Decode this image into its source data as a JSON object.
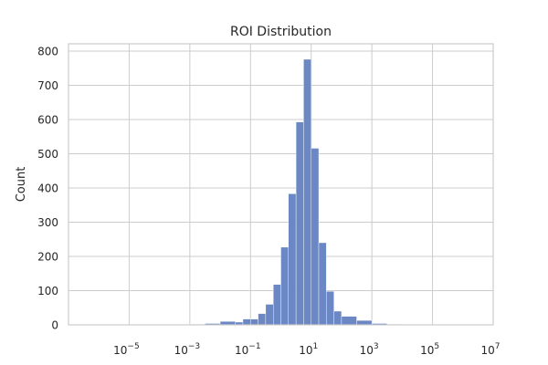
{
  "chart_data": {
    "type": "bar",
    "title": "ROI Distribution",
    "xlabel": "",
    "ylabel": "Count",
    "x_scale": "log",
    "xlim_exponents": [
      -7.0,
      7.0
    ],
    "ylim": [
      0,
      800
    ],
    "y_ticks": [
      0,
      100,
      200,
      300,
      400,
      500,
      600,
      700,
      800
    ],
    "x_ticks": [
      {
        "base": "10",
        "exp": "−5",
        "value_exp": -5
      },
      {
        "base": "10",
        "exp": "−3",
        "value_exp": -3
      },
      {
        "base": "10",
        "exp": "−1",
        "value_exp": -1
      },
      {
        "base": "10",
        "exp": "1",
        "value_exp": 1
      },
      {
        "base": "10",
        "exp": "3",
        "value_exp": 3
      },
      {
        "base": "10",
        "exp": "5",
        "value_exp": 5
      },
      {
        "base": "10",
        "exp": "7",
        "value_exp": 7
      }
    ],
    "grid": true,
    "bin_log_edges": [
      -6.5,
      -6.0,
      -5.5,
      -5.0,
      -4.5,
      -4.0,
      -3.5,
      -3.0,
      -2.5,
      -2.0,
      -1.5,
      -1.25,
      -1.0,
      -0.75,
      -0.5,
      -0.25,
      0.0,
      0.25,
      0.5,
      0.75,
      1.0,
      1.25,
      1.5,
      1.75,
      2.0,
      2.5,
      3.0,
      3.5,
      4.0,
      4.5,
      5.0,
      5.5,
      6.0,
      6.5
    ],
    "values": [
      1,
      0,
      0,
      0,
      0,
      0,
      0,
      2,
      4,
      10,
      8,
      17,
      17,
      33,
      60,
      118,
      227,
      383,
      593,
      776,
      516,
      240,
      98,
      40,
      25,
      13,
      4,
      2,
      1,
      1,
      1,
      1,
      1
    ],
    "colors": {
      "bar": "#6b88c4",
      "grid": "#cccccc"
    }
  }
}
